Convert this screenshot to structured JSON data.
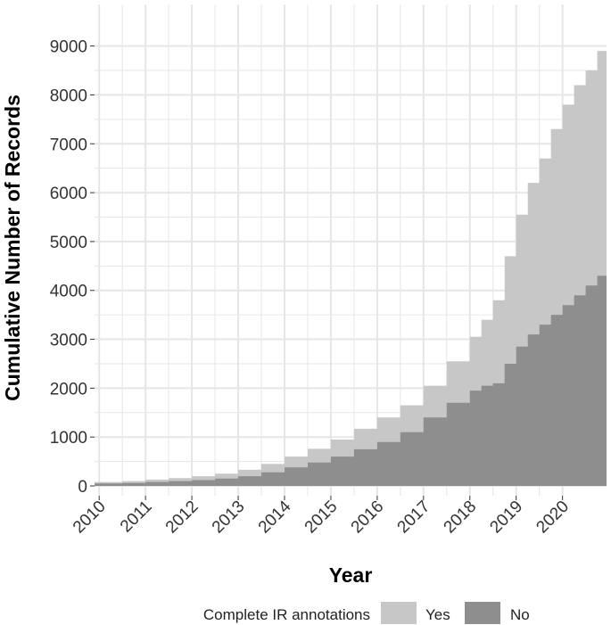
{
  "chart_data": {
    "type": "area",
    "subtype": "stacked-step",
    "xlabel": "Year",
    "ylabel": "Cumulative Number of Records",
    "x": [
      2009.9,
      2010.5,
      2011.0,
      2011.5,
      2012.0,
      2012.5,
      2013.0,
      2013.5,
      2014.0,
      2014.5,
      2015.0,
      2015.5,
      2016.0,
      2016.5,
      2017.0,
      2017.5,
      2018.0,
      2018.25,
      2018.5,
      2018.75,
      2019.0,
      2019.25,
      2019.5,
      2019.75,
      2020.0,
      2020.25,
      2020.5,
      2020.75,
      2020.95
    ],
    "series": [
      {
        "name": "No",
        "values": [
          50,
          60,
          80,
          100,
          120,
          150,
          200,
          280,
          380,
          480,
          600,
          750,
          900,
          1100,
          1400,
          1700,
          1950,
          2050,
          2100,
          2500,
          2850,
          3100,
          3300,
          3500,
          3700,
          3900,
          4100,
          4300,
          4400
        ]
      },
      {
        "name": "Yes",
        "values": [
          30,
          40,
          50,
          60,
          80,
          100,
          130,
          170,
          220,
          280,
          350,
          420,
          500,
          550,
          650,
          850,
          1100,
          1350,
          1700,
          2200,
          2700,
          3100,
          3400,
          3800,
          4100,
          4300,
          4400,
          4600,
          5100
        ]
      }
    ],
    "xticks": [
      "2010",
      "2011",
      "2012",
      "2013",
      "2014",
      "2015",
      "2016",
      "2017",
      "2018",
      "2019",
      "2020"
    ],
    "yticks": [
      "0",
      "1000",
      "2000",
      "3000",
      "4000",
      "5000",
      "6000",
      "7000",
      "8000",
      "9000"
    ],
    "xlim": [
      2009.9,
      2020.95
    ],
    "ylim": [
      -200,
      9850
    ],
    "grid": true,
    "legend": {
      "title": "Complete IR annotations",
      "position": "bottom",
      "entries": [
        "Yes",
        "No"
      ]
    },
    "colors": {
      "Yes": "#c7c7c7",
      "No": "#8e8e8e",
      "grid": "#e6e6e6"
    }
  }
}
